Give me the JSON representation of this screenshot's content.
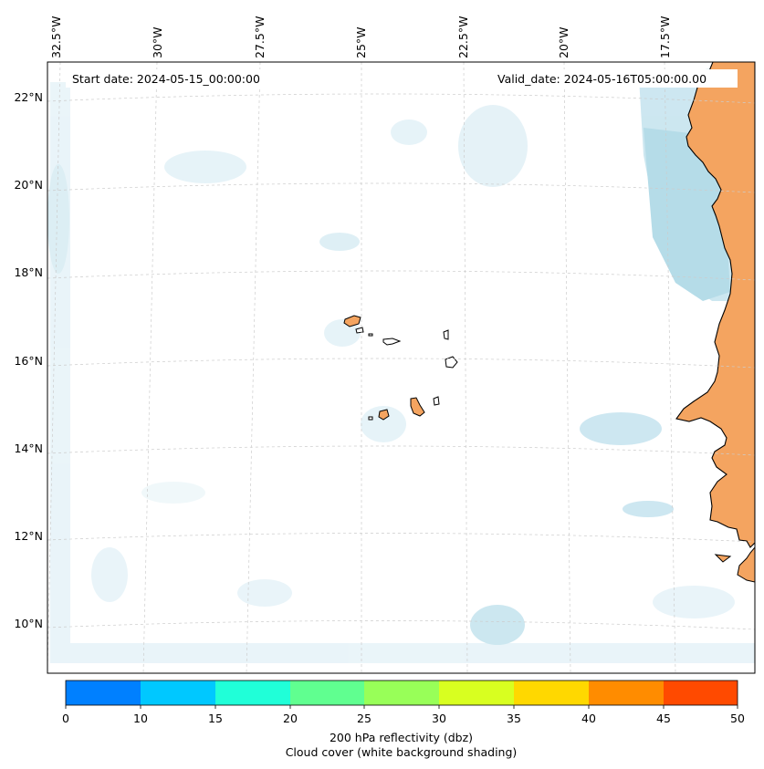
{
  "header": {
    "start_date": "Start date: 2024-05-15_00:00:00",
    "valid_date": "Valid_date: 2024-05-16T05:00:00.00"
  },
  "longitude_labels": [
    "32.5°W",
    "30°W",
    "27.5°W",
    "25°W",
    "22.5°W",
    "20°W",
    "17.5°W"
  ],
  "latitude_labels": [
    "22°N",
    "20°N",
    "18°N",
    "16°N",
    "14°N",
    "12°N",
    "10°N"
  ],
  "colorbar": {
    "ticks": [
      "0",
      "10",
      "15",
      "20",
      "25",
      "30",
      "35",
      "40",
      "45",
      "50"
    ],
    "colors": [
      "#0080ff",
      "#00c8ff",
      "#20ffd8",
      "#60ff90",
      "#98ff58",
      "#d8ff20",
      "#ffd800",
      "#ff8c00",
      "#ff4a00"
    ],
    "label_line1": "200 hPa reflectivity (dbz)",
    "label_line2": "Cloud cover (white background shading)"
  },
  "colors": {
    "land_fill": "#f4a460",
    "cloud_light": "#e6f3f8",
    "cloud_mid": "#c4e3ee",
    "cloud_dark": "#a9d6e5",
    "grid": "#cccccc"
  }
}
